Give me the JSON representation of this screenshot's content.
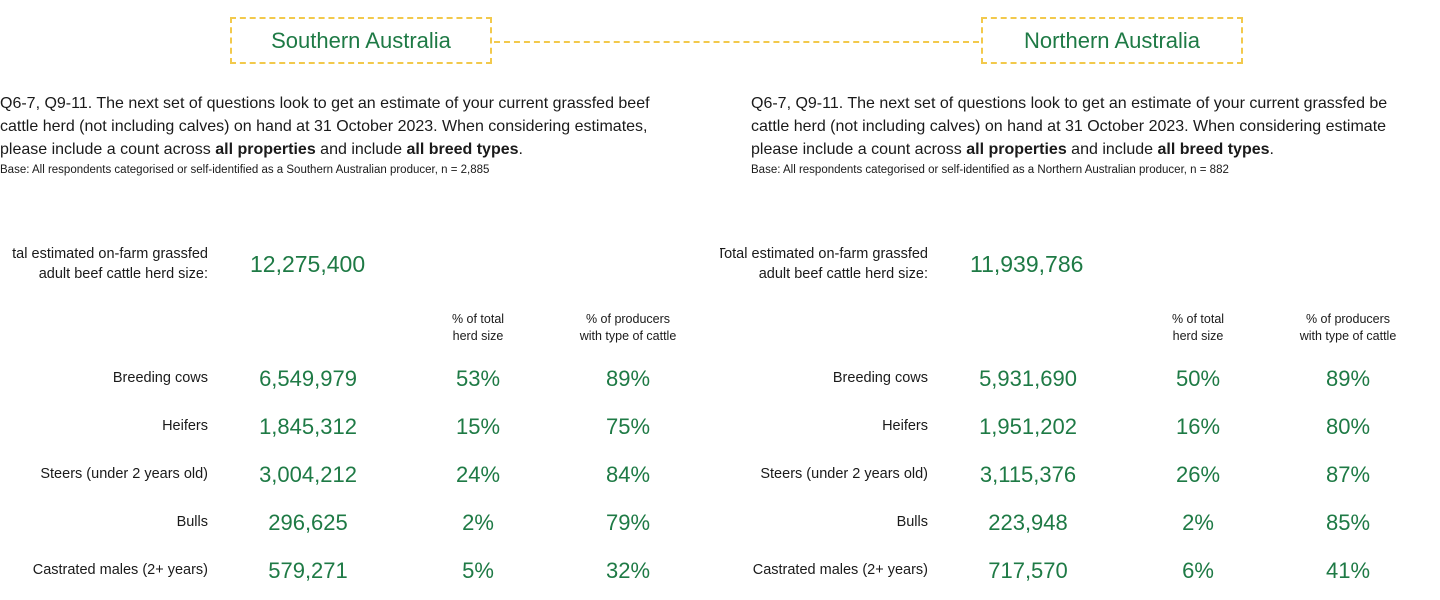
{
  "header": {
    "south_title": "Southern Australia",
    "north_title": "Northern Australia"
  },
  "south": {
    "question_lines": [
      "Q6-7, Q9-11. The next set of questions look to get an estimate of your current grassfed beef",
      "cattle herd (not including calves) on hand at 31 October 2023. When considering estimates,"
    ],
    "q3_pre": "please include a count across ",
    "q3_b1": "all properties",
    "q3_mid": " and include ",
    "q3_b2": "all breed types",
    "q3_post": ".",
    "base": "Base: All respondents categorised or self-identified as a Southern Australian producer, n = 2,885",
    "total_label_1": "tal estimated on-farm grassfed",
    "total_label_2": "adult beef cattle herd size:",
    "total_value": "12,275,400",
    "col_pct_total": [
      "% of total",
      "herd size"
    ],
    "col_pct_prod": [
      "% of producers",
      "with type of cattle"
    ],
    "rows": [
      {
        "label": "Breeding cows",
        "value": "6,549,979",
        "pct": "53%",
        "prod": "89%"
      },
      {
        "label": "Heifers",
        "value": "1,845,312",
        "pct": "15%",
        "prod": "75%"
      },
      {
        "label": "Steers (under 2 years old)",
        "value": "3,004,212",
        "pct": "24%",
        "prod": "84%"
      },
      {
        "label": "Bulls",
        "value": "296,625",
        "pct": "2%",
        "prod": "79%"
      },
      {
        "label": "Castrated males (2+ years)",
        "value": "579,271",
        "pct": "5%",
        "prod": "32%"
      }
    ]
  },
  "north": {
    "question_lines": [
      "Q6-7, Q9-11. The next set of questions look to get an estimate of your current grassfed be",
      "cattle herd (not including calves) on hand at 31 October 2023. When considering estimate"
    ],
    "q3_pre": "please include a count across ",
    "q3_b1": "all properties",
    "q3_mid": " and include ",
    "q3_b2": "all breed types",
    "q3_post": ".",
    "base": "Base: All respondents categorised or self-identified as a Northern Australian producer, n = 882",
    "total_label_1": "Total estimated on-farm grassfed",
    "total_label_2": "adult beef cattle herd size:",
    "total_value": "11,939,786",
    "col_pct_total": [
      "% of total",
      "herd size"
    ],
    "col_pct_prod": [
      "% of producers",
      "with type of cattle"
    ],
    "rows": [
      {
        "label": "Breeding cows",
        "value": "5,931,690",
        "pct": "50%",
        "prod": "89%"
      },
      {
        "label": "Heifers",
        "value": "1,951,202",
        "pct": "16%",
        "prod": "80%"
      },
      {
        "label": "Steers (under 2 years old)",
        "value": "3,115,376",
        "pct": "26%",
        "prod": "87%"
      },
      {
        "label": "Bulls",
        "value": "223,948",
        "pct": "2%",
        "prod": "85%"
      },
      {
        "label": "Castrated males (2+ years)",
        "value": "717,570",
        "pct": "6%",
        "prod": "41%"
      }
    ]
  },
  "colors": {
    "accent_green": "#1e7a45",
    "dash_yellow": "#f2c94c"
  }
}
